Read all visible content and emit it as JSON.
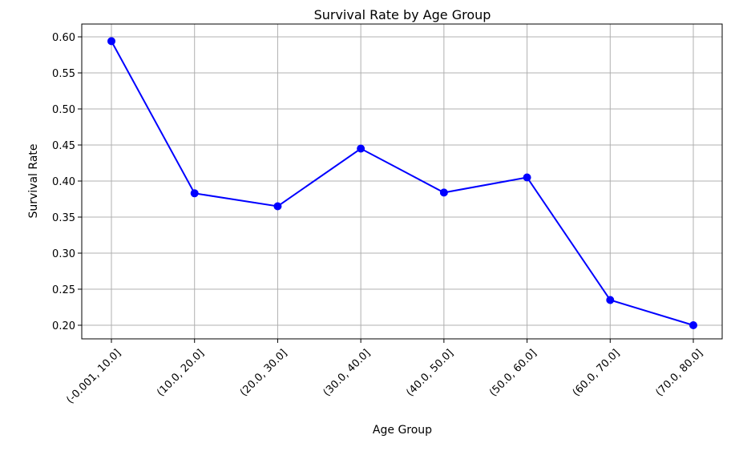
{
  "chart_data": {
    "type": "line",
    "title": "Survival Rate by Age Group",
    "xlabel": "Age Group",
    "ylabel": "Survival Rate",
    "categories": [
      "(-0.001, 10.0]",
      "(10.0, 20.0]",
      "(20.0, 30.0]",
      "(30.0, 40.0]",
      "(40.0, 50.0]",
      "(50.0, 60.0]",
      "(60.0, 70.0]",
      "(70.0, 80.0]"
    ],
    "values": [
      0.594,
      0.383,
      0.365,
      0.445,
      0.384,
      0.405,
      0.235,
      0.2
    ],
    "yticks": [
      "0.20",
      "0.25",
      "0.30",
      "0.35",
      "0.40",
      "0.45",
      "0.50",
      "0.55",
      "0.60"
    ],
    "ylim": [
      0.18,
      0.615
    ],
    "grid": true,
    "colors": {
      "line": "#0000ff",
      "marker": "#0000ff",
      "grid": "#b0b0b0"
    }
  }
}
